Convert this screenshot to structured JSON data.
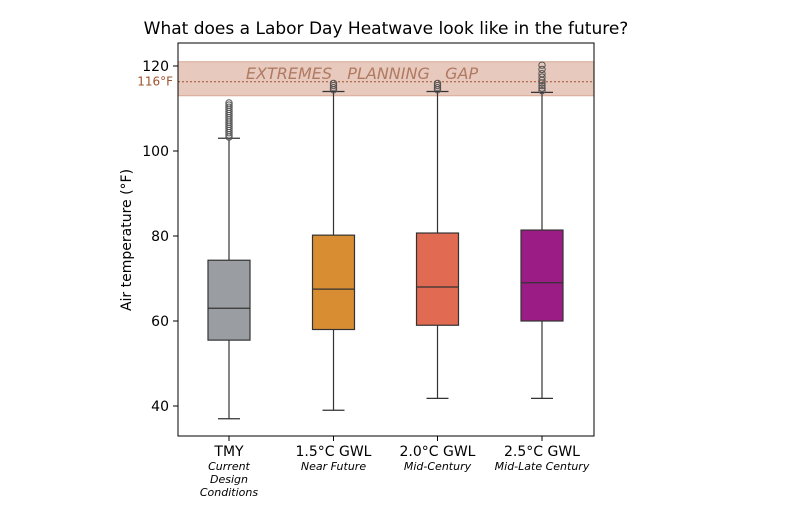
{
  "chart_data": {
    "type": "box",
    "title": "What does a Labor Day Heatwave look like in the future?",
    "ylabel": "Air temperature (°F)",
    "xlabel": "",
    "ylim": [
      33,
      125
    ],
    "yticks": [
      40,
      60,
      80,
      100,
      120
    ],
    "grid": false,
    "categories": [
      {
        "name": "TMY",
        "subtitle": [
          "Current",
          "Design",
          "Conditions"
        ],
        "color": "#9a9ea2",
        "whisker_low": 37,
        "q1": 55.5,
        "median": 63,
        "q3": 74.3,
        "whisker_high": 103,
        "outliers": [
          103.3,
          103.8,
          104.3,
          104.8,
          105.3,
          105.8,
          106.3,
          106.8,
          107.3,
          107.8,
          108.3,
          108.8,
          109.3,
          109.8,
          110.3,
          110.8,
          111.3
        ]
      },
      {
        "name": "1.5°C GWL",
        "subtitle": [
          "Near Future"
        ],
        "color": "#d98d33",
        "whisker_low": 39,
        "q1": 58,
        "median": 67.5,
        "q3": 80.2,
        "whisker_high": 114,
        "outliers": [
          114.4,
          114.9,
          115.4,
          115.9
        ]
      },
      {
        "name": "2.0°C GWL",
        "subtitle": [
          "Mid-Century"
        ],
        "color": "#e06a52",
        "whisker_low": 41.8,
        "q1": 59,
        "median": 68,
        "q3": 80.7,
        "whisker_high": 114,
        "outliers": [
          114.4,
          114.9,
          115.4,
          115.9
        ]
      },
      {
        "name": "2.5°C GWL",
        "subtitle": [
          "Mid-Late Century"
        ],
        "color": "#9b1c84",
        "whisker_low": 41.8,
        "q1": 60,
        "median": 69,
        "q3": 81.4,
        "whisker_high": 113.8,
        "outliers": [
          114.2,
          114.8,
          115.4,
          116.0,
          116.6,
          117.4,
          118.2,
          119.2,
          120.2
        ]
      }
    ],
    "annotations": {
      "band": {
        "label": "EXTREMES   PLANNING   GAP",
        "y_low": 113,
        "y_high": 121,
        "color": "#e8c9bd",
        "text_color": "#b07a62"
      },
      "reference_line": {
        "label": "116°F",
        "value": 116.3,
        "color": "#a0522d"
      }
    }
  }
}
